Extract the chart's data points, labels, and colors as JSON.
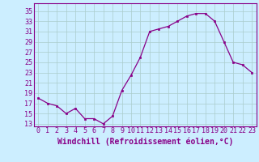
{
  "x": [
    0,
    1,
    2,
    3,
    4,
    5,
    6,
    7,
    8,
    9,
    10,
    11,
    12,
    13,
    14,
    15,
    16,
    17,
    18,
    19,
    20,
    21,
    22,
    23
  ],
  "y": [
    18,
    17,
    16.5,
    15,
    16,
    14,
    14,
    13,
    14.5,
    19.5,
    22.5,
    26,
    31,
    31.5,
    32,
    33,
    34,
    34.5,
    34.5,
    33,
    29,
    25,
    24.5,
    23
  ],
  "line_color": "#880088",
  "marker_color": "#880088",
  "bg_color": "#cceeff",
  "grid_color": "#aacccc",
  "xlabel": "Windchill (Refroidissement éolien,°C)",
  "yticks": [
    13,
    15,
    17,
    19,
    21,
    23,
    25,
    27,
    29,
    31,
    33,
    35
  ],
  "xticks": [
    0,
    1,
    2,
    3,
    4,
    5,
    6,
    7,
    8,
    9,
    10,
    11,
    12,
    13,
    14,
    15,
    16,
    17,
    18,
    19,
    20,
    21,
    22,
    23
  ],
  "xlim": [
    -0.5,
    23.5
  ],
  "ylim": [
    12.5,
    36.5
  ],
  "xlabel_fontsize": 7,
  "tick_fontsize": 6
}
